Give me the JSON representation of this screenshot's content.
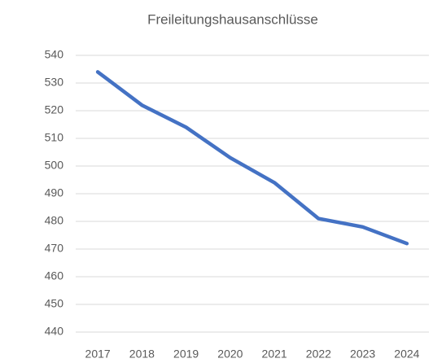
{
  "chart_data": {
    "type": "line",
    "title": "Freileitungshausanschlüsse",
    "categories": [
      "2017",
      "2018",
      "2019",
      "2020",
      "2021",
      "2022",
      "2023",
      "2024"
    ],
    "values": [
      534,
      522,
      514,
      503,
      494,
      481,
      478,
      472
    ],
    "color": "#4472c4",
    "ylim": [
      440,
      540
    ],
    "yticks": [
      440,
      450,
      460,
      470,
      480,
      490,
      500,
      510,
      520,
      530,
      540
    ],
    "grid": true
  }
}
